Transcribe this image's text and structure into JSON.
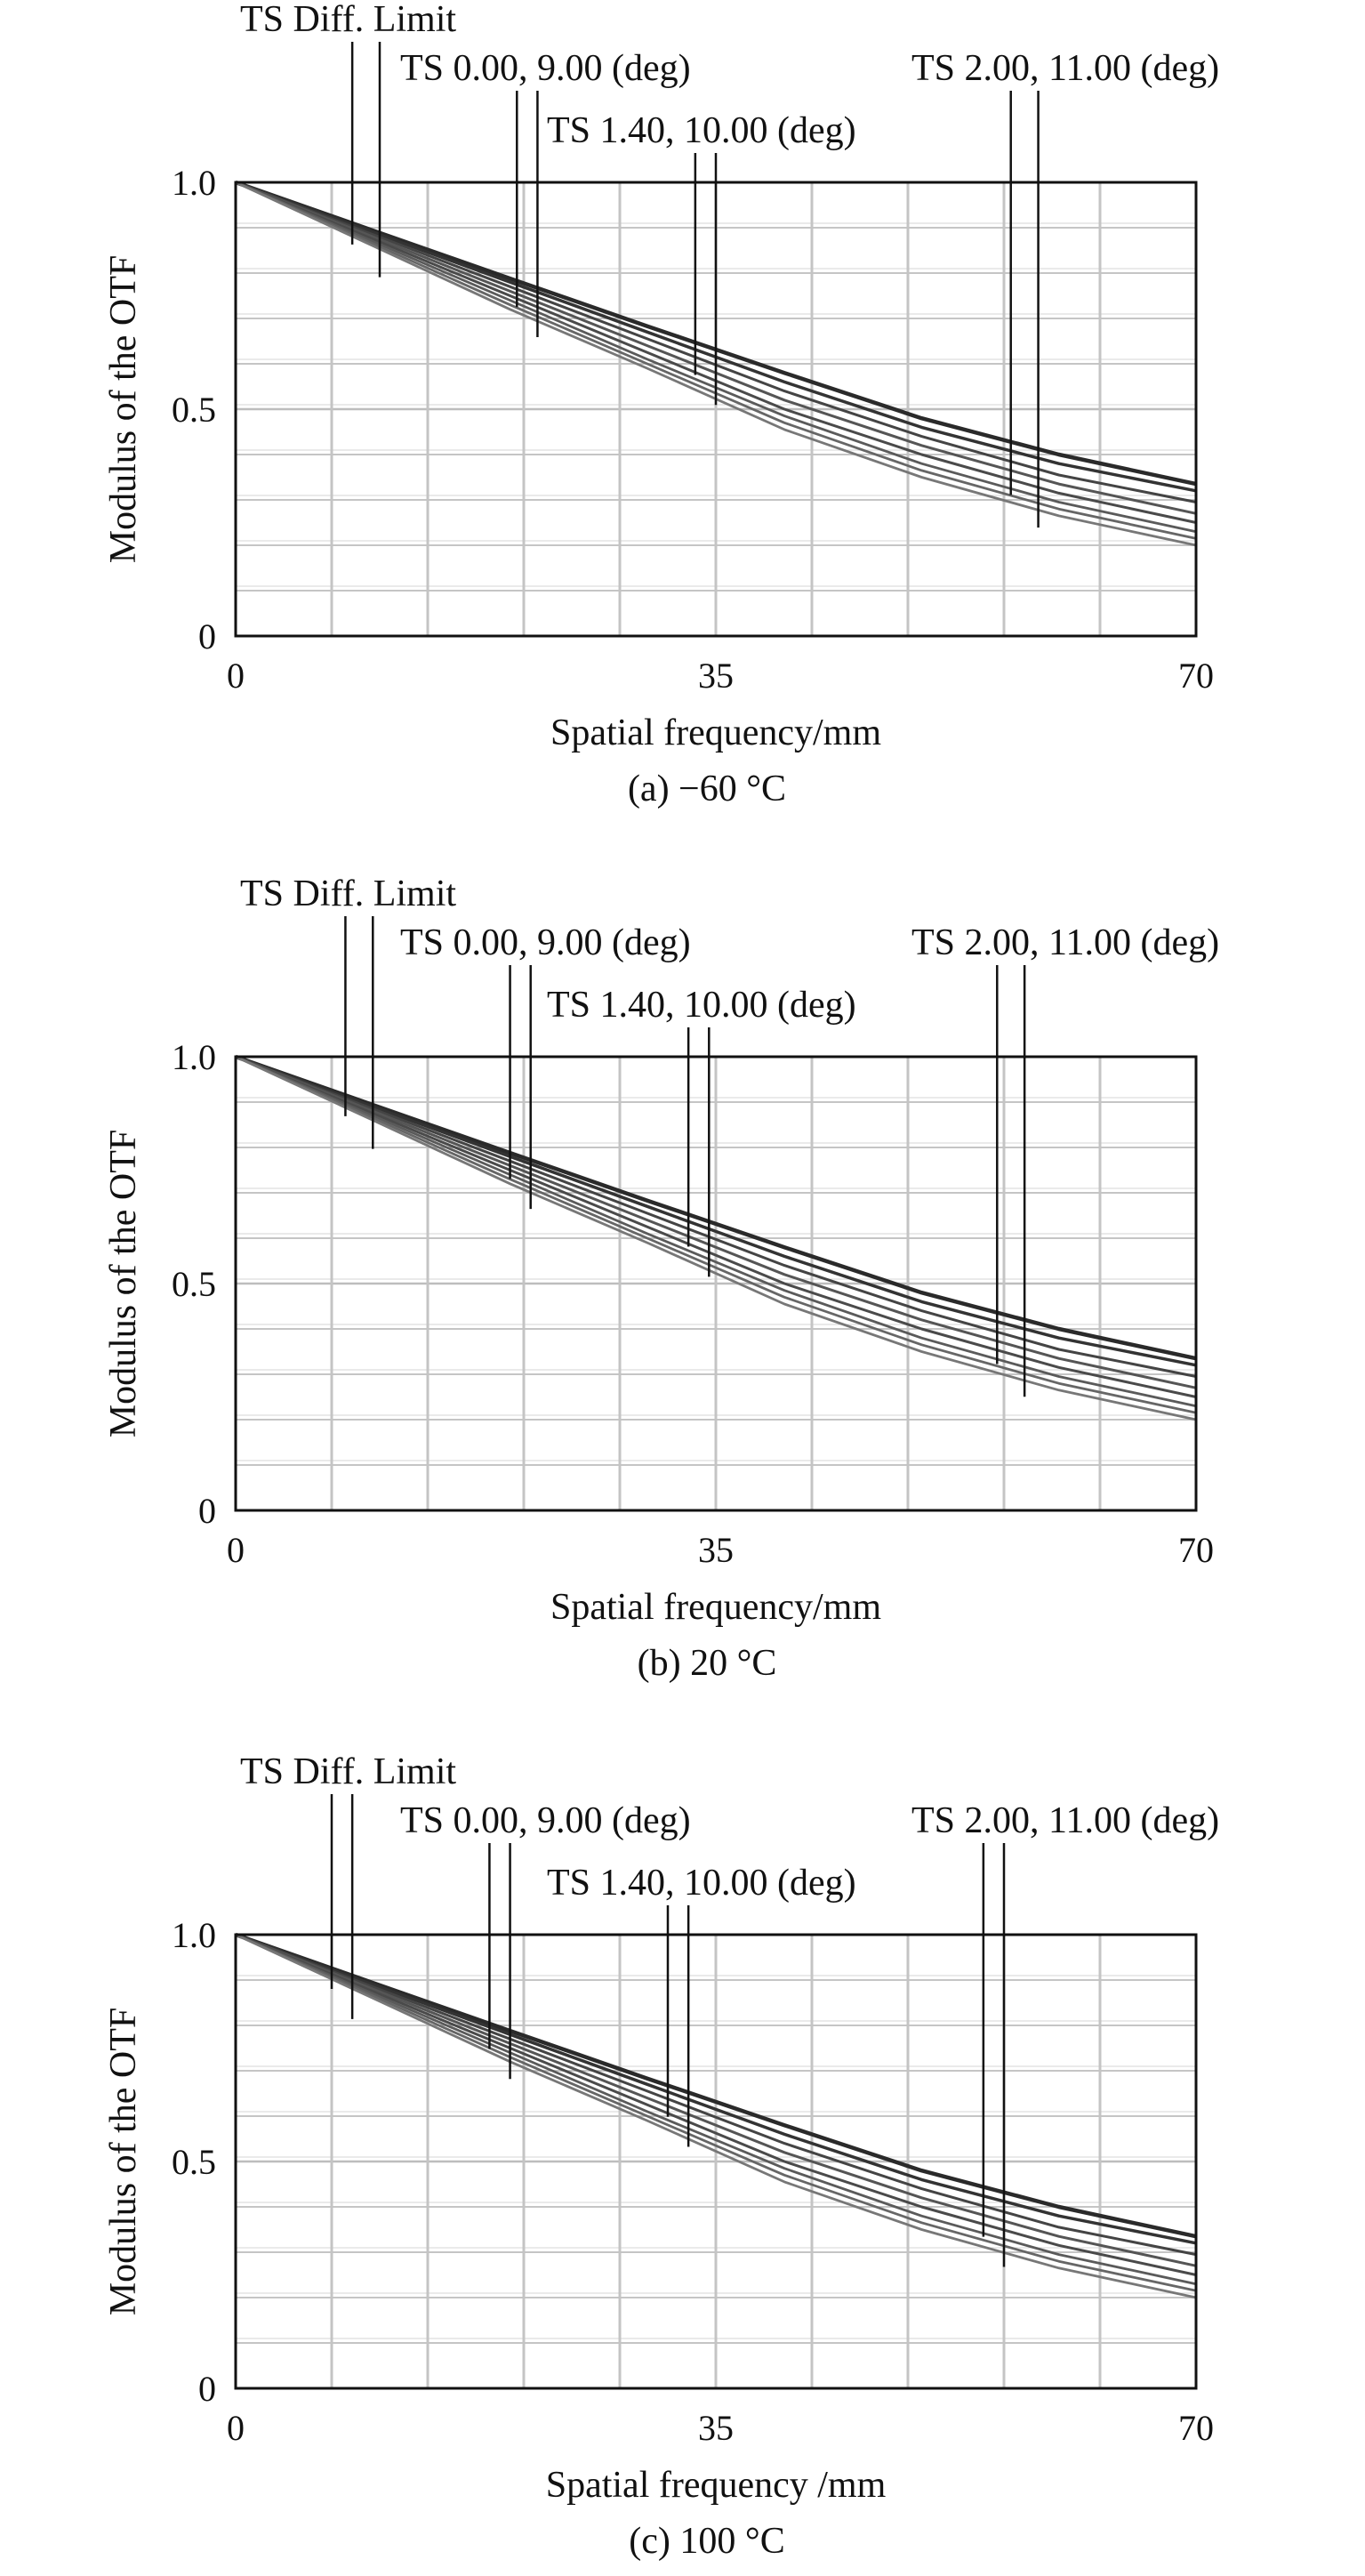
{
  "chart_data": [
    {
      "type": "line",
      "caption": "(a) −60 °C",
      "xlabel": "Spatial frequency/mm",
      "ylabel": "Modulus of the OTF",
      "xlim": [
        0,
        70
      ],
      "ylim": [
        0,
        1.0
      ],
      "xticks": [
        "0",
        "35",
        "70"
      ],
      "yticks": [
        "0",
        "0.5",
        "1.0"
      ],
      "grid": true,
      "legend_placement": "top",
      "legend": [
        {
          "label": "TS Diff. Limit",
          "pointer_x": [
            8.5,
            10.5
          ]
        },
        {
          "label": "TS 0.00, 9.00 (deg)",
          "pointer_x": [
            20.5,
            22.0
          ]
        },
        {
          "label": "TS 1.40, 10.00 (deg)",
          "pointer_x": [
            33.5,
            35.0
          ]
        },
        {
          "label": "TS 2.00, 11.00 (deg)",
          "pointer_x": [
            56.5,
            58.5
          ]
        }
      ],
      "x": [
        0,
        10,
        20,
        30,
        40,
        50,
        60,
        70
      ],
      "series": [
        {
          "values": [
            1.0,
            0.894,
            0.788,
            0.683,
            0.58,
            0.48,
            0.4,
            0.335
          ]
        },
        {
          "values": [
            1.0,
            0.89,
            0.78,
            0.67,
            0.56,
            0.46,
            0.38,
            0.32
          ]
        },
        {
          "values": [
            1.0,
            0.885,
            0.77,
            0.655,
            0.54,
            0.44,
            0.355,
            0.295
          ]
        },
        {
          "values": [
            1.0,
            0.88,
            0.76,
            0.64,
            0.52,
            0.42,
            0.335,
            0.27
          ]
        },
        {
          "values": [
            1.0,
            0.875,
            0.75,
            0.625,
            0.5,
            0.4,
            0.315,
            0.25
          ]
        },
        {
          "values": [
            1.0,
            0.87,
            0.74,
            0.61,
            0.485,
            0.38,
            0.295,
            0.23
          ]
        },
        {
          "values": [
            1.0,
            0.865,
            0.73,
            0.6,
            0.47,
            0.365,
            0.28,
            0.215
          ]
        },
        {
          "values": [
            1.0,
            0.86,
            0.72,
            0.59,
            0.455,
            0.35,
            0.265,
            0.2
          ]
        }
      ]
    },
    {
      "type": "line",
      "caption": "(b) 20 °C",
      "xlabel": "Spatial frequency/mm",
      "ylabel": "Modulus of the OTF",
      "xlim": [
        0,
        70
      ],
      "ylim": [
        0,
        1.0
      ],
      "xticks": [
        "0",
        "35",
        "70"
      ],
      "yticks": [
        "0",
        "0.5",
        "1.0"
      ],
      "grid": true,
      "legend_placement": "top",
      "legend": [
        {
          "label": "TS Diff. Limit",
          "pointer_x": [
            8.0,
            10.0
          ]
        },
        {
          "label": "TS 0.00, 9.00 (deg)",
          "pointer_x": [
            20.0,
            21.5
          ]
        },
        {
          "label": "TS 1.40, 10.00 (deg)",
          "pointer_x": [
            33.0,
            34.5
          ]
        },
        {
          "label": "TS 2.00, 11.00 (deg)",
          "pointer_x": [
            55.5,
            57.5
          ]
        }
      ],
      "x": [
        0,
        10,
        20,
        30,
        40,
        50,
        60,
        70
      ],
      "series": [
        {
          "values": [
            1.0,
            0.894,
            0.788,
            0.683,
            0.58,
            0.48,
            0.4,
            0.335
          ]
        },
        {
          "values": [
            1.0,
            0.89,
            0.78,
            0.67,
            0.56,
            0.46,
            0.38,
            0.32
          ]
        },
        {
          "values": [
            1.0,
            0.885,
            0.77,
            0.655,
            0.54,
            0.44,
            0.355,
            0.295
          ]
        },
        {
          "values": [
            1.0,
            0.88,
            0.76,
            0.64,
            0.52,
            0.42,
            0.335,
            0.27
          ]
        },
        {
          "values": [
            1.0,
            0.875,
            0.75,
            0.625,
            0.5,
            0.4,
            0.315,
            0.25
          ]
        },
        {
          "values": [
            1.0,
            0.87,
            0.74,
            0.61,
            0.485,
            0.38,
            0.295,
            0.23
          ]
        },
        {
          "values": [
            1.0,
            0.865,
            0.73,
            0.6,
            0.47,
            0.365,
            0.28,
            0.215
          ]
        },
        {
          "values": [
            1.0,
            0.86,
            0.72,
            0.59,
            0.455,
            0.35,
            0.265,
            0.2
          ]
        }
      ]
    },
    {
      "type": "line",
      "caption": "(c) 100 °C",
      "xlabel": "Spatial frequency /mm",
      "ylabel": "Modulus of the OTF",
      "xlim": [
        0,
        70
      ],
      "ylim": [
        0,
        1.0
      ],
      "xticks": [
        "0",
        "35",
        "70"
      ],
      "yticks": [
        "0",
        "0.5",
        "1.0"
      ],
      "grid": true,
      "legend_placement": "top",
      "legend": [
        {
          "label": "TS Diff. Limit",
          "pointer_x": [
            7.0,
            8.5
          ]
        },
        {
          "label": "TS 0.00, 9.00 (deg)",
          "pointer_x": [
            18.5,
            20.0
          ]
        },
        {
          "label": "TS 1.40, 10.00 (deg)",
          "pointer_x": [
            31.5,
            33.0
          ]
        },
        {
          "label": "TS 2.00, 11.00 (deg)",
          "pointer_x": [
            54.5,
            56.0
          ]
        }
      ],
      "x": [
        0,
        10,
        20,
        30,
        40,
        50,
        60,
        70
      ],
      "series": [
        {
          "values": [
            1.0,
            0.894,
            0.788,
            0.683,
            0.58,
            0.48,
            0.4,
            0.335
          ]
        },
        {
          "values": [
            1.0,
            0.89,
            0.78,
            0.67,
            0.56,
            0.46,
            0.38,
            0.32
          ]
        },
        {
          "values": [
            1.0,
            0.885,
            0.77,
            0.655,
            0.54,
            0.44,
            0.355,
            0.295
          ]
        },
        {
          "values": [
            1.0,
            0.88,
            0.76,
            0.64,
            0.52,
            0.42,
            0.335,
            0.27
          ]
        },
        {
          "values": [
            1.0,
            0.875,
            0.75,
            0.625,
            0.5,
            0.4,
            0.315,
            0.25
          ]
        },
        {
          "values": [
            1.0,
            0.87,
            0.74,
            0.61,
            0.485,
            0.38,
            0.295,
            0.23
          ]
        },
        {
          "values": [
            1.0,
            0.865,
            0.73,
            0.6,
            0.47,
            0.365,
            0.28,
            0.215
          ]
        },
        {
          "values": [
            1.0,
            0.86,
            0.72,
            0.59,
            0.455,
            0.35,
            0.265,
            0.2
          ]
        }
      ]
    }
  ]
}
